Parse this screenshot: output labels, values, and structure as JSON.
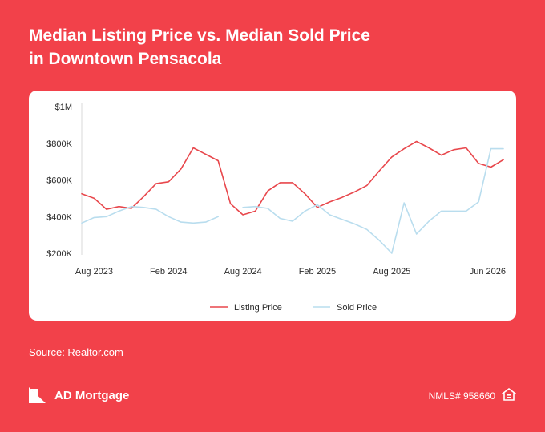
{
  "header": {
    "title_line1": "Median Listing Price vs. Median Sold Price",
    "title_line2": "in Downtown Pensacola"
  },
  "footer": {
    "source": "Source: Realtor.com",
    "brand": "AD Mortgage",
    "nmls": "NMLS# 958660"
  },
  "colors": {
    "background": "#F2414A",
    "listing": "#E8474C",
    "sold": "#B9DDEE"
  },
  "icons": {
    "brand_logo": "ad-mortgage-logo",
    "equal_housing": "equal-housing-icon"
  },
  "chart_data": {
    "type": "line",
    "x_start": "2023-07",
    "x_ticks": [
      "Aug 2023",
      "Feb 2024",
      "Aug 2024",
      "Feb 2025",
      "Aug 2025",
      "Jun 2026"
    ],
    "y_ticks": [
      "$200K",
      "$400K",
      "$600K",
      "$800K",
      "$1M"
    ],
    "ylim": [
      200000,
      1000000
    ],
    "grid": false,
    "legend_position": "bottom",
    "series": [
      {
        "name": "Listing Price",
        "color": "#E8474C",
        "values": [
          525000,
          500000,
          440000,
          455000,
          445000,
          510000,
          580000,
          590000,
          660000,
          775000,
          740000,
          705000,
          470000,
          410000,
          430000,
          540000,
          585000,
          585000,
          525000,
          450000,
          480000,
          505000,
          535000,
          570000,
          650000,
          725000,
          770000,
          810000,
          775000,
          735000,
          765000,
          775000,
          690000,
          670000,
          710000
        ]
      },
      {
        "name": "Sold Price",
        "color": "#B9DDEE",
        "values": [
          365000,
          395000,
          400000,
          430000,
          455000,
          450000,
          440000,
          400000,
          370000,
          365000,
          370000,
          400000,
          null,
          450000,
          455000,
          445000,
          390000,
          375000,
          430000,
          465000,
          410000,
          385000,
          360000,
          330000,
          270000,
          200000,
          475000,
          305000,
          375000,
          430000,
          430000,
          430000,
          480000,
          770000,
          770000
        ]
      }
    ]
  }
}
